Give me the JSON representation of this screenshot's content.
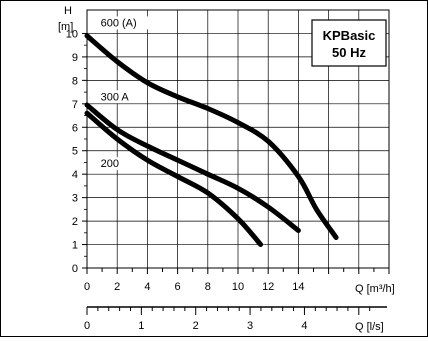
{
  "chart_data": {
    "type": "line",
    "y_axis": {
      "label_top": "H",
      "label_unit": "[m]",
      "range": [
        0,
        11
      ],
      "ticks": [
        "0",
        "1",
        "2",
        "3",
        "4",
        "5",
        "6",
        "7",
        "8",
        "9",
        "10"
      ]
    },
    "x_axis_primary": {
      "label": "Q [m³/h]",
      "range": [
        0,
        20
      ],
      "ticks": [
        "0",
        "2",
        "4",
        "6",
        "8",
        "10",
        "12",
        "14"
      ]
    },
    "x_axis_secondary": {
      "label": "Q [l/s]",
      "range": [
        0,
        5.556
      ],
      "ticks": [
        "0",
        "1",
        "2",
        "3",
        "4"
      ]
    },
    "grid": true,
    "legend_box": {
      "line1": "KPBasic",
      "line2": "50 Hz",
      "placement": "top-right"
    },
    "series": [
      {
        "name": "600 (A)",
        "points": [
          [
            0,
            9.9
          ],
          [
            2,
            8.8
          ],
          [
            4,
            7.9
          ],
          [
            6,
            7.3
          ],
          [
            8,
            6.8
          ],
          [
            10,
            6.2
          ],
          [
            12,
            5.4
          ],
          [
            14,
            3.9
          ],
          [
            15.2,
            2.5
          ],
          [
            16.5,
            1.3
          ]
        ]
      },
      {
        "name": "300 A",
        "points": [
          [
            0,
            6.95
          ],
          [
            2,
            5.9
          ],
          [
            4,
            5.2
          ],
          [
            6,
            4.6
          ],
          [
            8,
            4.0
          ],
          [
            10,
            3.4
          ],
          [
            12,
            2.6
          ],
          [
            14,
            1.6
          ]
        ]
      },
      {
        "name": "200",
        "points": [
          [
            0,
            6.6
          ],
          [
            2,
            5.5
          ],
          [
            4,
            4.6
          ],
          [
            6,
            3.9
          ],
          [
            8,
            3.2
          ],
          [
            10,
            2.1
          ],
          [
            11.5,
            1.0
          ]
        ]
      }
    ]
  }
}
